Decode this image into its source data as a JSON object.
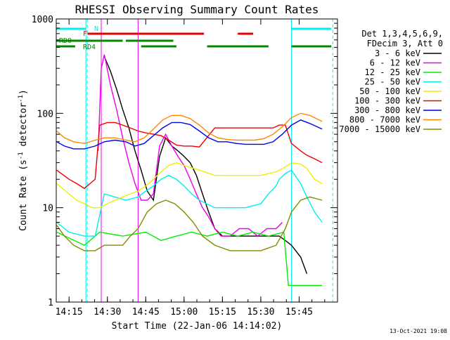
{
  "chart_data": {
    "type": "line",
    "title": "RHESSI Observing Summary Count Rates",
    "xlabel": "Start Time (22-Jan-06 14:14:02)",
    "ylabel": "Count Rate (s⁻¹ detector⁻¹)",
    "ylabel_parts": {
      "main": "Count Rate (s",
      "sup1": "-1",
      "mid": " detector",
      "sup2": "-1",
      "end": ")"
    },
    "yscale": "log",
    "xlim": [
      14.1667,
      16.0
    ],
    "ylim": [
      1,
      1000
    ],
    "x_ticks": [
      {
        "v": 14.25,
        "label": "14:15"
      },
      {
        "v": 14.5,
        "label": "14:30"
      },
      {
        "v": 14.75,
        "label": "14:45"
      },
      {
        "v": 15.0,
        "label": "15:00"
      },
      {
        "v": 15.25,
        "label": "15:15"
      },
      {
        "v": 15.5,
        "label": "15:30"
      },
      {
        "v": 15.75,
        "label": "15:45"
      }
    ],
    "y_ticks": [
      {
        "v": 1,
        "label": "1"
      },
      {
        "v": 10,
        "label": "10"
      },
      {
        "v": 100,
        "label": "100"
      },
      {
        "v": 1000,
        "label": "1000"
      }
    ],
    "legend_position": "right",
    "legend_header": [
      "Det 1,3,4,5,6,9,",
      "FDecim 3, Att 0"
    ],
    "timestamp": "13-Oct-2021 19:08",
    "series": [
      {
        "name": "3 - 6 keV",
        "color": "#000000",
        "x": [
          14.17,
          14.28,
          14.36,
          14.42,
          14.45,
          14.48,
          14.52,
          14.56,
          14.6,
          14.64,
          14.68,
          14.72,
          14.76,
          14.8,
          14.84,
          14.88,
          14.92,
          14.96,
          15.0,
          15.04,
          15.08,
          15.12,
          15.16,
          15.2,
          15.25,
          15.32,
          15.38,
          15.44,
          15.5,
          15.56,
          15.62,
          15.66,
          15.7,
          15.76,
          15.8,
          15.9
        ],
        "y": [
          null,
          null,
          null,
          null,
          null,
          400,
          280,
          180,
          110,
          70,
          40,
          25,
          15,
          12,
          35,
          55,
          45,
          40,
          35,
          30,
          22,
          14,
          9,
          6,
          5,
          5,
          5,
          5,
          5,
          5,
          5,
          4.5,
          4,
          3,
          2,
          null
        ]
      },
      {
        "name": "6 - 12 keV",
        "color": "#ee00ee",
        "x": [
          14.44,
          14.46,
          14.48,
          14.52,
          14.56,
          14.6,
          14.64,
          14.68,
          14.72,
          14.76,
          14.8,
          14.84,
          14.88,
          14.92,
          14.96,
          15.0,
          15.04,
          15.08,
          15.12,
          15.16,
          15.2,
          15.24,
          15.3,
          15.36,
          15.42,
          15.48,
          15.54,
          15.6,
          15.64,
          15.66
        ],
        "y": [
          40,
          300,
          420,
          200,
          110,
          55,
          30,
          18,
          12,
          12,
          14,
          45,
          60,
          45,
          35,
          28,
          20,
          14,
          10,
          8,
          6,
          5,
          5,
          6,
          6,
          5,
          6,
          6,
          7,
          null
        ]
      },
      {
        "name": "12 - 25 keV",
        "color": "#00ee00",
        "x": [
          14.17,
          14.35,
          14.45,
          14.6,
          14.75,
          14.85,
          14.95,
          15.05,
          15.15,
          15.25,
          15.35,
          15.45,
          15.55,
          15.65,
          15.68,
          15.7,
          15.8,
          15.9
        ],
        "y": [
          5.5,
          4,
          5.5,
          5,
          5.5,
          4.5,
          5,
          5.5,
          5,
          5.5,
          5,
          5.5,
          5,
          5.5,
          1.5,
          1.5,
          1.5,
          1.5
        ]
      },
      {
        "name": "25 - 50 keV",
        "color": "#00eeee",
        "x": [
          14.17,
          14.25,
          14.35,
          14.42,
          14.48,
          14.55,
          14.62,
          14.7,
          14.75,
          14.8,
          14.85,
          14.9,
          14.95,
          15.0,
          15.05,
          15.1,
          15.2,
          15.3,
          15.4,
          15.5,
          15.55,
          15.6,
          15.62,
          15.66,
          15.7,
          15.76,
          15.8,
          15.85,
          15.9
        ],
        "y": [
          7,
          5.5,
          5,
          5,
          14,
          13,
          12,
          13,
          15,
          17,
          20,
          22,
          20,
          17,
          14,
          12,
          10,
          10,
          10,
          11,
          14,
          17,
          20,
          23,
          25,
          18,
          13,
          9,
          7
        ]
      },
      {
        "name": "50 - 100 keV",
        "color": "#eeee00",
        "x": [
          14.17,
          14.25,
          14.3,
          14.35,
          14.4,
          14.45,
          14.5,
          14.55,
          14.6,
          14.65,
          14.7,
          14.75,
          14.8,
          14.85,
          14.9,
          14.95,
          15.0,
          15.1,
          15.2,
          15.3,
          15.4,
          15.5,
          15.6,
          15.66,
          15.7,
          15.76,
          15.8,
          15.85,
          15.9
        ],
        "y": [
          18,
          14,
          12,
          11,
          10,
          10,
          11,
          12,
          13,
          14,
          15,
          17,
          20,
          24,
          28,
          30,
          28,
          25,
          22,
          22,
          22,
          22,
          24,
          27,
          30,
          29,
          26,
          20,
          18
        ]
      },
      {
        "name": "100 - 300 keV",
        "color": "#ee0000",
        "x": [
          14.17,
          14.25,
          14.3,
          14.35,
          14.42,
          14.45,
          14.5,
          14.55,
          14.6,
          14.65,
          14.7,
          14.75,
          14.8,
          14.85,
          14.9,
          14.95,
          15.0,
          15.05,
          15.1,
          15.2,
          15.3,
          15.4,
          15.5,
          15.58,
          15.62,
          15.66,
          15.7,
          15.76,
          15.8,
          15.85,
          15.9
        ],
        "y": [
          25,
          20,
          18,
          16,
          20,
          75,
          80,
          80,
          75,
          70,
          65,
          62,
          60,
          58,
          52,
          46,
          45,
          45,
          44,
          70,
          70,
          70,
          70,
          70,
          75,
          75,
          48,
          40,
          36,
          33,
          30
        ]
      },
      {
        "name": "300 - 800 keV",
        "color": "#0000ee",
        "x": [
          14.17,
          14.22,
          14.28,
          14.35,
          14.42,
          14.48,
          14.55,
          14.62,
          14.68,
          14.74,
          14.8,
          14.86,
          14.92,
          14.98,
          15.04,
          15.1,
          15.16,
          15.22,
          15.28,
          15.34,
          15.4,
          15.46,
          15.52,
          15.58,
          15.64,
          15.7,
          15.76,
          15.82,
          15.9
        ],
        "y": [
          50,
          45,
          42,
          42,
          45,
          50,
          52,
          50,
          45,
          48,
          58,
          70,
          80,
          80,
          76,
          65,
          55,
          50,
          50,
          48,
          47,
          47,
          47,
          50,
          60,
          75,
          85,
          78,
          68
        ]
      },
      {
        "name": "800 - 7000 keV",
        "color": "#ff8800",
        "x": [
          14.17,
          14.22,
          14.28,
          14.35,
          14.42,
          14.48,
          14.55,
          14.62,
          14.68,
          14.74,
          14.8,
          14.86,
          14.92,
          14.98,
          15.04,
          15.1,
          15.16,
          15.22,
          15.28,
          15.34,
          15.4,
          15.46,
          15.52,
          15.58,
          15.64,
          15.7,
          15.76,
          15.82,
          15.9
        ],
        "y": [
          65,
          55,
          50,
          48,
          52,
          55,
          55,
          52,
          50,
          55,
          68,
          85,
          95,
          95,
          88,
          75,
          62,
          55,
          53,
          52,
          52,
          52,
          54,
          60,
          72,
          90,
          100,
          95,
          82
        ]
      },
      {
        "name": "7000 - 15000 keV",
        "color": "#888800",
        "x": [
          14.17,
          14.22,
          14.28,
          14.35,
          14.42,
          14.48,
          14.55,
          14.6,
          14.65,
          14.7,
          14.76,
          14.82,
          14.88,
          14.94,
          15.0,
          15.06,
          15.12,
          15.2,
          15.3,
          15.4,
          15.5,
          15.6,
          15.66,
          15.7,
          15.76,
          15.82,
          15.9
        ],
        "y": [
          6.5,
          5,
          4,
          3.5,
          3.5,
          4,
          4,
          4,
          5,
          6,
          9,
          11,
          12,
          11,
          9,
          7,
          5,
          4,
          3.5,
          3.5,
          3.5,
          4,
          6,
          9,
          12,
          13,
          12
        ]
      }
    ],
    "state_bars": [
      {
        "label": "N",
        "color": "#00eeee",
        "x_ranges": [
          [
            14.167,
            14.36
          ],
          [
            15.7,
            15.96
          ]
        ],
        "vlines": [
          14.36,
          15.7
        ],
        "vline_dashed": [
          14.36,
          15.96
        ]
      },
      {
        "label": "F",
        "color": "#ee0000",
        "x_ranges": [
          [
            14.37,
            15.13
          ],
          [
            15.35,
            15.45
          ]
        ]
      },
      {
        "label": "RD0",
        "color": "#008800",
        "x_ranges": [
          [
            14.167,
            14.6
          ],
          [
            14.62,
            14.93
          ]
        ]
      },
      {
        "label": "RD4",
        "color": "#008800",
        "x_ranges": [
          [
            14.167,
            14.29
          ],
          [
            14.72,
            14.95
          ],
          [
            15.15,
            15.55
          ],
          [
            15.7,
            15.96
          ]
        ]
      }
    ],
    "event_lines": [
      {
        "x": 14.46,
        "color": "#ee00ee",
        "dashed": false
      },
      {
        "x": 14.7,
        "color": "#ee00ee",
        "dashed": false
      }
    ]
  }
}
